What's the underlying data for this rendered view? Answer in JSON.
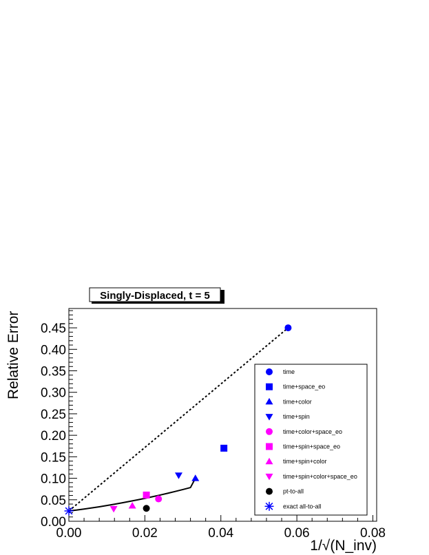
{
  "chart_data": {
    "type": "scatter",
    "title": "Singly-Displaced, t = 5",
    "xlabel": "1/√(N_inv)",
    "ylabel": "Relative Error",
    "xlim": [
      0,
      0.081
    ],
    "ylim": [
      0,
      0.495
    ],
    "x_ticks": [
      0.0,
      0.02,
      0.04,
      0.06,
      0.08
    ],
    "x_tick_labels": [
      "0.00",
      "0.02",
      "0.04",
      "0.06",
      "0.08"
    ],
    "y_ticks": [
      0.0,
      0.05,
      0.1,
      0.15,
      0.2,
      0.25,
      0.3,
      0.35,
      0.4,
      0.45
    ],
    "y_tick_labels": [
      "0.00",
      "0.05",
      "0.10",
      "0.15",
      "0.20",
      "0.25",
      "0.30",
      "0.35",
      "0.40",
      "0.45"
    ],
    "grid": false,
    "legend_position": "bottom-right",
    "series": [
      {
        "name": "time",
        "marker": "circle",
        "color": "#0000ff",
        "points": [
          {
            "x": 0.0577,
            "y": 0.45
          }
        ]
      },
      {
        "name": "time+space_eo",
        "marker": "square",
        "color": "#0000ff",
        "points": [
          {
            "x": 0.0408,
            "y": 0.17
          }
        ]
      },
      {
        "name": "time+color",
        "marker": "triangle-up",
        "color": "#0000ff",
        "points": [
          {
            "x": 0.0333,
            "y": 0.1
          }
        ]
      },
      {
        "name": "time+spin",
        "marker": "triangle-down",
        "color": "#0000ff",
        "points": [
          {
            "x": 0.0289,
            "y": 0.107
          }
        ]
      },
      {
        "name": "time+color+space_eo",
        "marker": "circle",
        "color": "#ff00ff",
        "points": [
          {
            "x": 0.0236,
            "y": 0.052
          }
        ]
      },
      {
        "name": "time+spin+space_eo",
        "marker": "square",
        "color": "#ff00ff",
        "points": [
          {
            "x": 0.0204,
            "y": 0.061
          }
        ]
      },
      {
        "name": "time+spin+color",
        "marker": "triangle-up",
        "color": "#ff00ff",
        "points": [
          {
            "x": 0.0167,
            "y": 0.036
          }
        ]
      },
      {
        "name": "time+spin+color+space_eo",
        "marker": "triangle-down",
        "color": "#ff00ff",
        "points": [
          {
            "x": 0.0118,
            "y": 0.029
          }
        ]
      },
      {
        "name": "pt-to-all",
        "marker": "circle",
        "color": "#000000",
        "points": [
          {
            "x": 0.0204,
            "y": 0.03
          }
        ]
      },
      {
        "name": "exact all-to-all",
        "marker": "asterisk",
        "color": "#0000ff",
        "points": [
          {
            "x": 0.0,
            "y": 0.024
          }
        ]
      }
    ],
    "lines": [
      {
        "style": "dotted",
        "color": "#000000",
        "points": [
          [
            0.0,
            0.024
          ],
          [
            0.0577,
            0.45
          ]
        ]
      },
      {
        "style": "solid",
        "color": "#000000",
        "points": [
          [
            0.0,
            0.024
          ],
          [
            0.002,
            0.026
          ],
          [
            0.004,
            0.0285
          ],
          [
            0.006,
            0.031
          ],
          [
            0.008,
            0.0337
          ],
          [
            0.01,
            0.0366
          ],
          [
            0.012,
            0.0397
          ],
          [
            0.014,
            0.0429
          ],
          [
            0.016,
            0.0462
          ],
          [
            0.018,
            0.0497
          ],
          [
            0.02,
            0.0533
          ],
          [
            0.022,
            0.0571
          ],
          [
            0.024,
            0.061
          ],
          [
            0.026,
            0.0651
          ],
          [
            0.028,
            0.0694
          ],
          [
            0.03,
            0.0738
          ],
          [
            0.032,
            0.0784
          ],
          [
            0.0333,
            0.1
          ]
        ]
      }
    ]
  }
}
